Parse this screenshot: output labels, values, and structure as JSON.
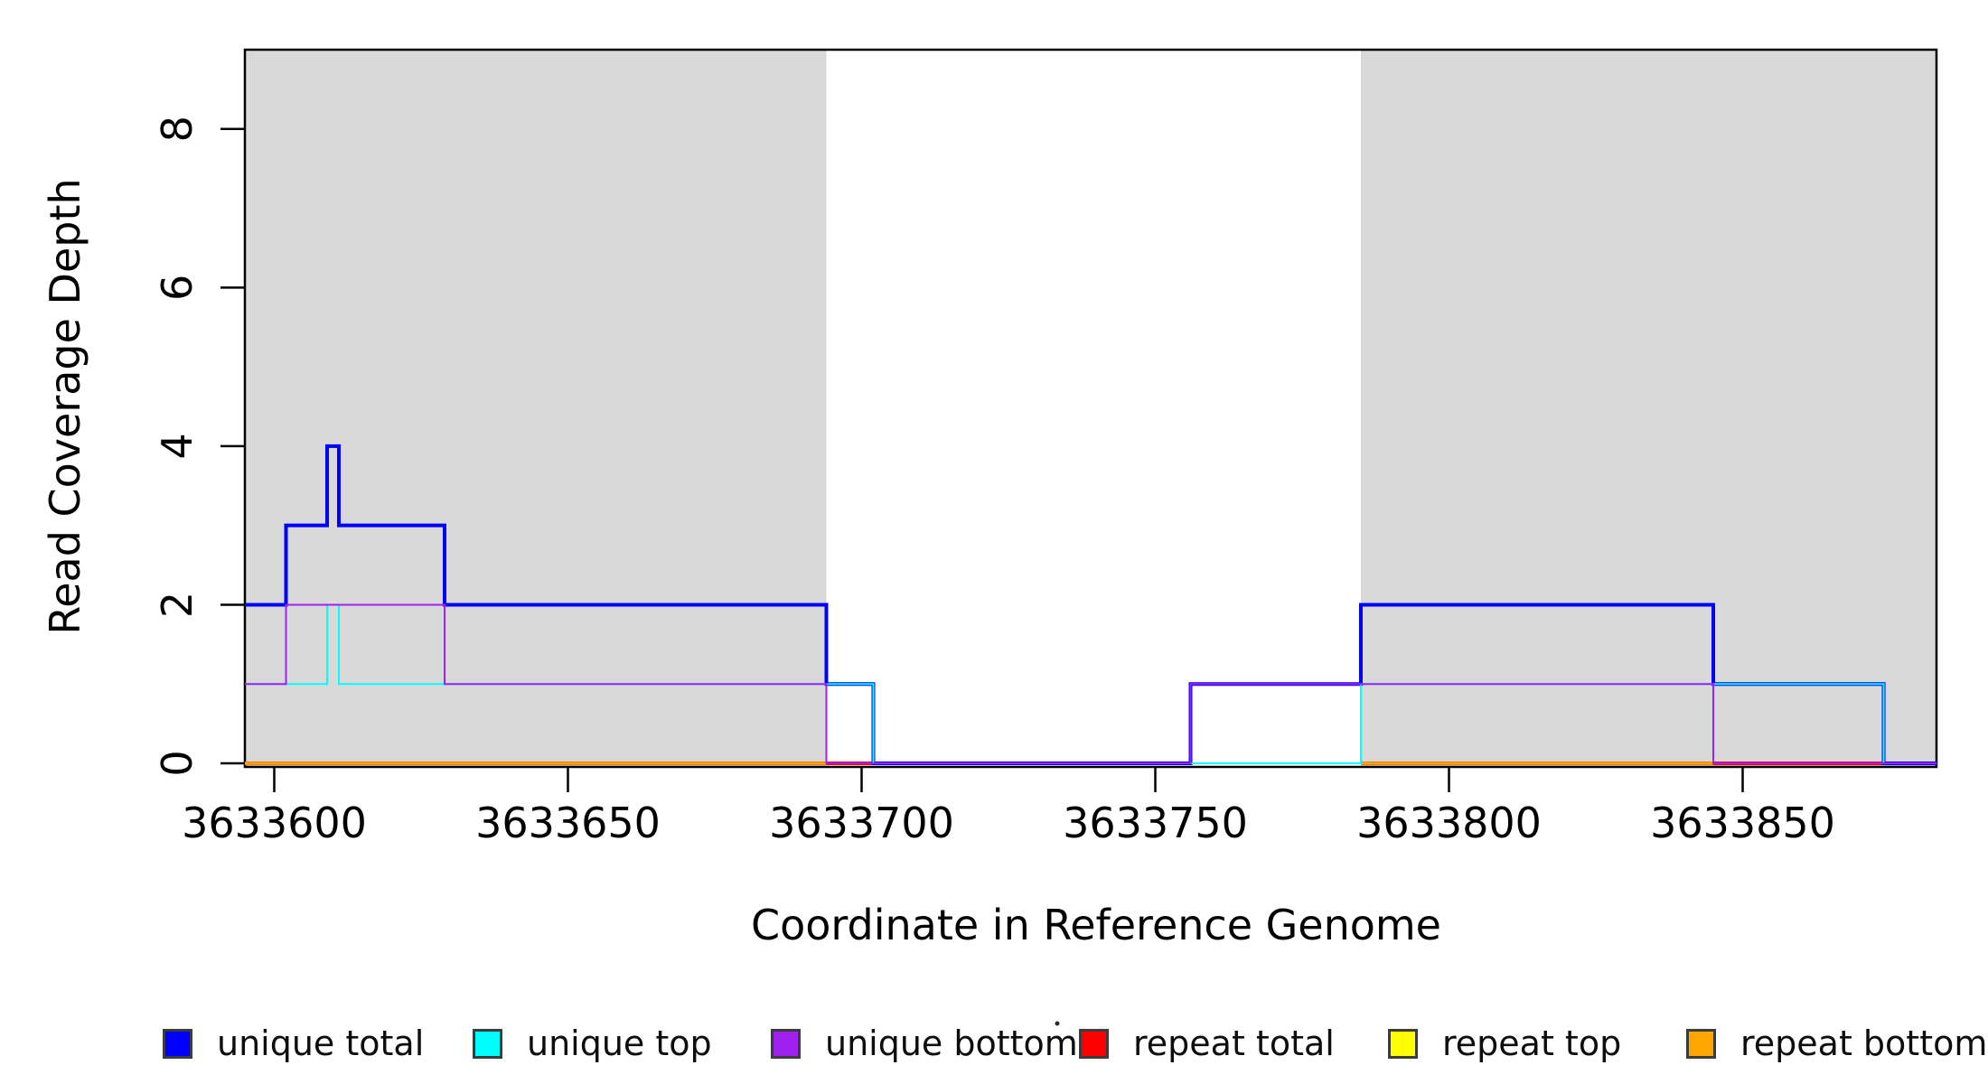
{
  "chart_data": {
    "type": "line",
    "subtype": "step-coverage",
    "title": "",
    "xlabel": "Coordinate in Reference Genome",
    "ylabel": "Read Coverage Depth",
    "xlim": [
      3633595,
      3633883
    ],
    "ylim": [
      0,
      9
    ],
    "grid": false,
    "legend_position": "bottom",
    "x_ticks": [
      "3633600",
      "3633650",
      "3633700",
      "3633750",
      "3633800",
      "3633850"
    ],
    "x_tick_values": [
      3633600,
      3633650,
      3633700,
      3633750,
      3633800,
      3633850
    ],
    "y_ticks": [
      "0",
      "2",
      "4",
      "6",
      "8"
    ],
    "y_tick_values": [
      0,
      2,
      4,
      6,
      8
    ],
    "repeat_region_color": "#D9D9D9",
    "repeat_regions": [
      [
        3633595,
        3633694
      ],
      [
        3633785,
        3633883
      ]
    ],
    "series": [
      {
        "name": "repeat total",
        "color": "#FF0000",
        "width": 4,
        "segments": [
          {
            "x": [
              3633595,
              3633702
            ],
            "y": 0
          },
          {
            "x": [
              3633785,
              3633874
            ],
            "y": 0
          }
        ]
      },
      {
        "name": "repeat top",
        "color": "#FFFF00",
        "width": 2.5,
        "segments": [
          {
            "x": [
              3633595,
              3633694
            ],
            "y": 0
          },
          {
            "x": [
              3633785,
              3633845
            ],
            "y": 0
          }
        ]
      },
      {
        "name": "repeat bottom",
        "color": "#FFA500",
        "width": 3.5,
        "segments": [
          {
            "x": [
              3633595,
              3633694
            ],
            "y": 0
          },
          {
            "x": [
              3633785,
              3633845
            ],
            "y": 0
          }
        ]
      },
      {
        "name": "unique total",
        "color": "#0000FF",
        "width": 4,
        "steps": {
          "x": [
            3633595,
            3633602,
            3633609,
            3633611,
            3633629,
            3633694,
            3633702,
            3633756,
            3633785,
            3633845,
            3633874,
            3633883
          ],
          "v": [
            2,
            3,
            4,
            3,
            2,
            1,
            0,
            1,
            2,
            1,
            0
          ]
        }
      },
      {
        "name": "unique top",
        "color": "#00FFFF",
        "width": 2,
        "steps": {
          "x": [
            3633595,
            3633609,
            3633611,
            3633702,
            3633785,
            3633874,
            3633883
          ],
          "v": [
            1,
            2,
            1,
            0,
            1,
            0
          ]
        }
      },
      {
        "name": "unique bottom",
        "color": "#A020F0",
        "width": 2,
        "steps": {
          "x": [
            3633595,
            3633602,
            3633629,
            3633694,
            3633756,
            3633845,
            3633883
          ],
          "v": [
            1,
            2,
            1,
            0,
            1,
            0
          ]
        }
      }
    ],
    "legend": {
      "items": [
        {
          "label": "unique total",
          "color": "#0000FF",
          "x": 180
        },
        {
          "label": "unique top",
          "color": "#00FFFF",
          "x": 523
        },
        {
          "label": "unique bottom",
          "color": "#A020F0",
          "x": 853
        },
        {
          "label": "repeat total",
          "color": "#FF0000",
          "x": 1194
        },
        {
          "label": "repeat top",
          "color": "#FFFF00",
          "x": 1536
        },
        {
          "label": "repeat bottom",
          "color": "#FFA500",
          "x": 1866
        }
      ]
    }
  }
}
